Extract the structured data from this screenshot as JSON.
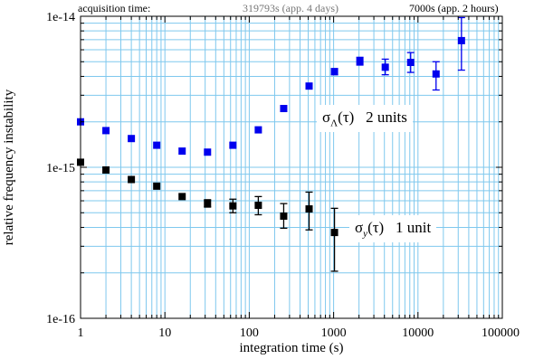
{
  "header": {
    "acquisition_label": "acquisition time:",
    "long_run": "319793s (app. 4 days)",
    "short_run": "7000s (app. 2 hours)"
  },
  "chart_data": {
    "type": "scatter",
    "title": "",
    "xlabel": "integration time (s)",
    "ylabel": "relative frequency instability",
    "xscale": "log",
    "yscale": "log",
    "xlim": [
      1,
      100000
    ],
    "ylim": [
      1e-16,
      1e-14
    ],
    "x_tick_labels": [
      "1",
      "10",
      "100",
      "1000",
      "10000",
      "100000"
    ],
    "y_tick_labels": [
      "1e-16",
      "1e-15",
      "1e-14"
    ],
    "grid": true,
    "series": [
      {
        "name": "σΛ(τ)   2 units",
        "color": "#0000ee",
        "points": [
          {
            "x": 1,
            "y": 2e-15
          },
          {
            "x": 2,
            "y": 1.75e-15
          },
          {
            "x": 4,
            "y": 1.55e-15
          },
          {
            "x": 8,
            "y": 1.4e-15
          },
          {
            "x": 16,
            "y": 1.28e-15
          },
          {
            "x": 32,
            "y": 1.26e-15
          },
          {
            "x": 64,
            "y": 1.4e-15
          },
          {
            "x": 128,
            "y": 1.77e-15
          },
          {
            "x": 256,
            "y": 2.45e-15
          },
          {
            "x": 512,
            "y": 3.45e-15
          },
          {
            "x": 1024,
            "y": 4.3e-15,
            "err": [
              4.1e-15,
              4.5e-15
            ]
          },
          {
            "x": 2048,
            "y": 5.05e-15,
            "err": [
              4.75e-15,
              5.35e-15
            ]
          },
          {
            "x": 4096,
            "y": 4.6e-15,
            "err": [
              4.1e-15,
              5.2e-15
            ]
          },
          {
            "x": 8192,
            "y": 4.95e-15,
            "err": [
              4.25e-15,
              5.75e-15
            ]
          },
          {
            "x": 16384,
            "y": 4.15e-15,
            "err": [
              3.25e-15,
              5e-15
            ]
          },
          {
            "x": 32768,
            "y": 6.9e-15,
            "err": [
              4.4e-15,
              9.8e-15
            ]
          }
        ]
      },
      {
        "name": "σy(τ)   1 unit",
        "color": "#000000",
        "points": [
          {
            "x": 1,
            "y": 1.08e-15
          },
          {
            "x": 2,
            "y": 9.6e-16
          },
          {
            "x": 4,
            "y": 8.3e-16
          },
          {
            "x": 8,
            "y": 7.5e-16
          },
          {
            "x": 16,
            "y": 6.4e-16
          },
          {
            "x": 32,
            "y": 5.75e-16,
            "err": [
              5.45e-16,
              6.1e-16
            ]
          },
          {
            "x": 64,
            "y": 5.55e-16,
            "err": [
              5e-16,
              6.15e-16
            ]
          },
          {
            "x": 128,
            "y": 5.6e-16,
            "err": [
              4.85e-16,
              6.4e-16
            ]
          },
          {
            "x": 256,
            "y": 4.75e-16,
            "err": [
              3.95e-16,
              5.75e-16
            ]
          },
          {
            "x": 512,
            "y": 5.3e-16,
            "err": [
              3.85e-16,
              6.85e-16
            ]
          },
          {
            "x": 1024,
            "y": 3.7e-16,
            "err": [
              2.05e-16,
              5.35e-16
            ]
          }
        ]
      }
    ],
    "annotations": [
      {
        "id": "lambda",
        "sigma": "σ",
        "sub": "Λ",
        "arg": "(τ)",
        "units": "2 units"
      },
      {
        "id": "y",
        "sigma": "σ",
        "sub": "y",
        "arg": "(τ)",
        "units": "1 unit"
      }
    ]
  }
}
